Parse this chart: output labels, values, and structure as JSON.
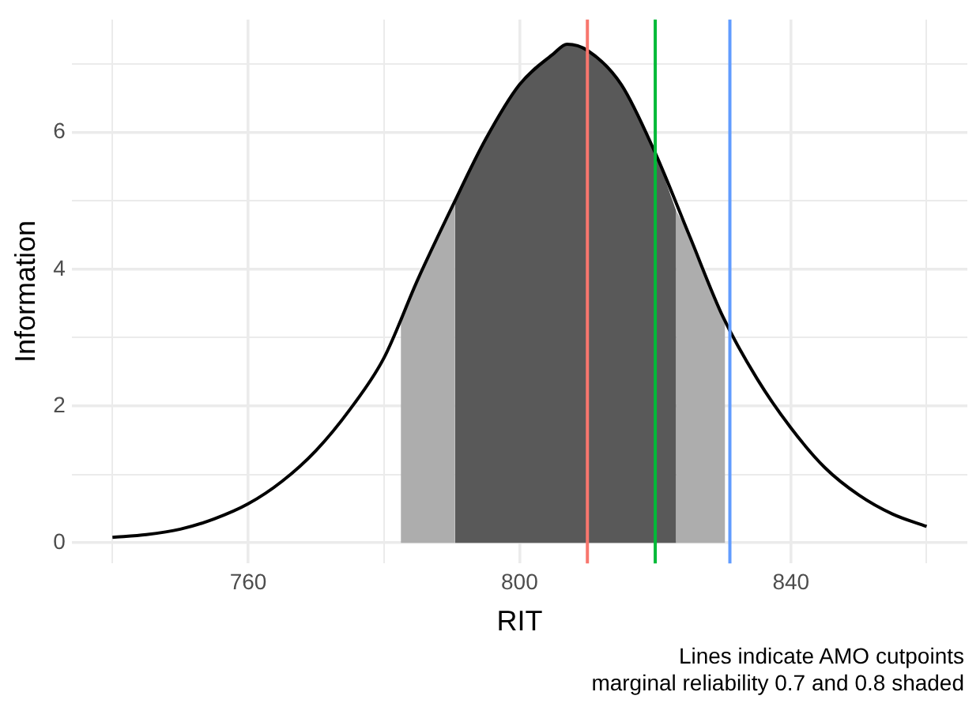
{
  "chart_data": {
    "type": "line",
    "xlabel": "RIT",
    "ylabel": "Information",
    "annotations": [
      "Lines indicate AMO cutpoints",
      "marginal reliability 0.7 and 0.8 shaded"
    ],
    "series": [
      {
        "color": "#000000",
        "x": [
          740,
          745,
          750,
          755,
          760,
          765,
          770,
          775,
          780,
          785,
          790,
          795,
          800,
          805,
          807,
          810,
          815,
          820,
          825,
          830,
          835,
          840,
          845,
          850,
          855,
          860
        ],
        "values": [
          0.08,
          0.12,
          0.2,
          0.35,
          0.57,
          0.9,
          1.35,
          1.95,
          2.7,
          3.85,
          4.9,
          5.9,
          6.7,
          7.15,
          7.29,
          7.2,
          6.7,
          5.7,
          4.5,
          3.3,
          2.4,
          1.68,
          1.1,
          0.7,
          0.42,
          0.24
        ]
      },
      {
        "type": "area",
        "color": "#595959",
        "x": [
          790.5,
          795,
          800,
          805,
          807,
          810,
          815,
          820,
          823.1
        ],
        "values": [
          5.0,
          5.9,
          6.7,
          7.15,
          7.29,
          7.2,
          6.7,
          5.7,
          4.85
        ]
      },
      {
        "type": "area",
        "color": "#adadad",
        "x": [
          782.5,
          785,
          790,
          790.5,
          807,
          823.1,
          825,
          830,
          830.3
        ],
        "values": [
          3.23,
          3.85,
          4.9,
          5.0,
          null,
          4.85,
          4.5,
          3.3,
          3.23
        ]
      }
    ],
    "xlim": [
      734,
      866
    ],
    "ylim": [
      -0.3,
      7.65
    ],
    "xticks": [
      {
        "value": 740,
        "label": null
      },
      760,
      {
        "value": 780,
        "label": null
      },
      800,
      {
        "value": 820,
        "label": null
      },
      840,
      {
        "value": 860,
        "label": null
      }
    ],
    "yticks": [
      0,
      {
        "value": 1,
        "label": null
      },
      2,
      {
        "value": 3,
        "label": null
      },
      4,
      {
        "value": 5,
        "label": null
      },
      6,
      {
        "value": 7,
        "label": null
      }
    ],
    "grid": true,
    "legend": false,
    "marker": "none",
    "line_style": "solid",
    "ref_lines": [
      {
        "axis": "x",
        "value": 810,
        "color": "#f8766d"
      },
      {
        "axis": "x",
        "value": 820,
        "color": "#00ba38"
      },
      {
        "axis": "x",
        "value": 831,
        "color": "#619cff"
      }
    ]
  }
}
